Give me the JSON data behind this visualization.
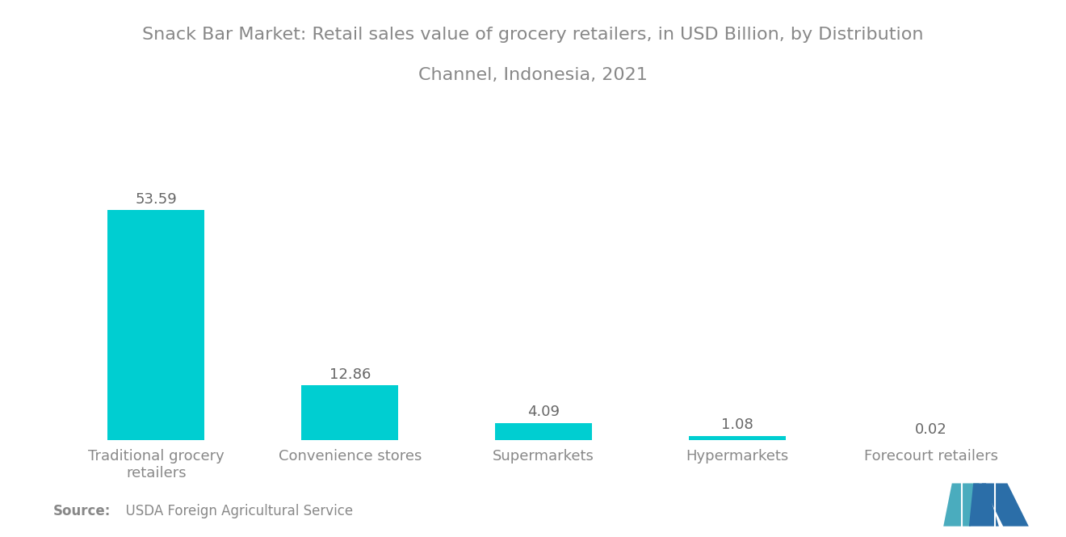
{
  "title_line1": "Snack Bar Market: Retail sales value of grocery retailers, in USD Billion, by Distribution",
  "title_line2": "Channel, Indonesia, 2021",
  "categories": [
    "Traditional grocery\nretailers",
    "Convenience stores",
    "Supermarkets",
    "Hypermarkets",
    "Forecourt retailers"
  ],
  "values": [
    53.59,
    12.86,
    4.09,
    1.08,
    0.02
  ],
  "bar_color": "#00CED1",
  "background_color": "#ffffff",
  "title_color": "#888888",
  "label_color": "#888888",
  "value_color": "#666666",
  "source_bold": "Source:",
  "source_rest": "  USDA Foreign Agricultural Service",
  "title_fontsize": 16,
  "label_fontsize": 13,
  "value_fontsize": 13,
  "source_fontsize": 12,
  "ylim": [
    0,
    65
  ],
  "bar_width": 0.5,
  "logo_color1": "#4AACBE",
  "logo_color2": "#2B6EA8"
}
